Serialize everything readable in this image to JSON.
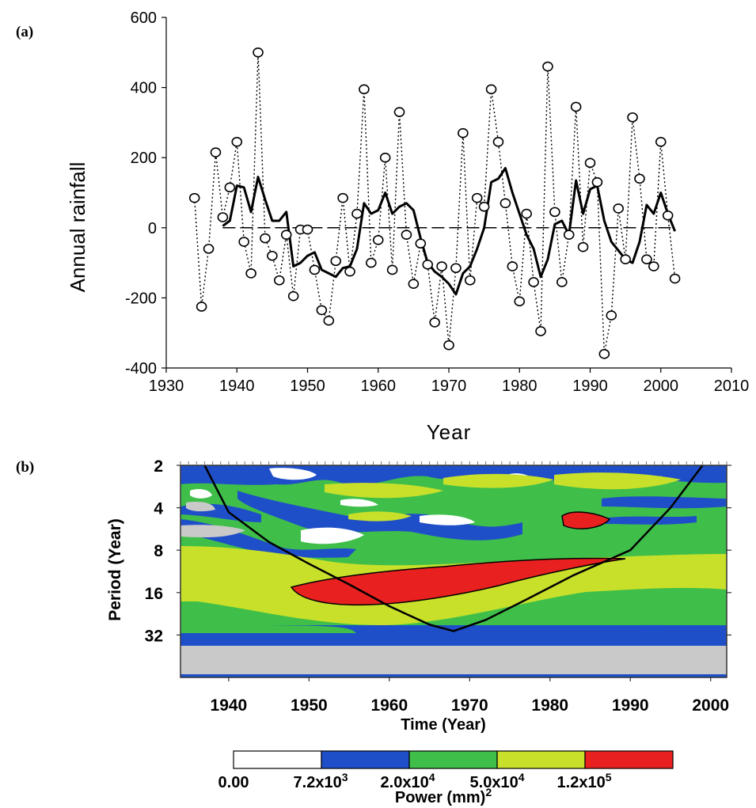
{
  "panels": {
    "a_label": "(a)",
    "b_label": "(b)"
  },
  "chart_data": [
    {
      "type": "line",
      "xlabel": "Year",
      "ylabel": "Annual rainfall",
      "xlim": [
        1930,
        2010
      ],
      "ylim": [
        -400,
        600
      ],
      "x_ticks": [
        1930,
        1940,
        1950,
        1960,
        1970,
        1980,
        1990,
        2000,
        2010
      ],
      "y_ticks": [
        -400,
        -200,
        0,
        200,
        400,
        600
      ],
      "grid": false,
      "zero_line": {
        "y": 0,
        "style": "dashed",
        "x_range": [
          1938,
          2002
        ]
      },
      "series": [
        {
          "style": "dotted-with-circle-markers",
          "x": [
            1934,
            1935,
            1936,
            1937,
            1938,
            1939,
            1940,
            1941,
            1942,
            1943,
            1944,
            1945,
            1946,
            1947,
            1948,
            1949,
            1950,
            1951,
            1952,
            1953,
            1954,
            1955,
            1956,
            1957,
            1958,
            1959,
            1960,
            1961,
            1962,
            1963,
            1964,
            1965,
            1966,
            1967,
            1968,
            1969,
            1970,
            1971,
            1972,
            1973,
            1974,
            1975,
            1976,
            1977,
            1978,
            1979,
            1980,
            1981,
            1982,
            1983,
            1984,
            1985,
            1986,
            1987,
            1988,
            1989,
            1990,
            1991,
            1992,
            1993,
            1994,
            1995,
            1996,
            1997,
            1998,
            1999,
            2000,
            2001,
            2002
          ],
          "values": [
            85,
            -225,
            -60,
            215,
            30,
            115,
            245,
            -40,
            -130,
            500,
            -30,
            -80,
            -150,
            -20,
            -195,
            -5,
            -5,
            -120,
            -235,
            -265,
            -95,
            85,
            -125,
            40,
            395,
            -100,
            -35,
            200,
            -120,
            330,
            -20,
            -160,
            -45,
            -105,
            -270,
            -110,
            -335,
            -115,
            270,
            -150,
            85,
            60,
            395,
            245,
            70,
            -110,
            -210,
            40,
            -155,
            -295,
            460,
            45,
            -155,
            -20,
            345,
            -55,
            185,
            130,
            -360,
            -250,
            55,
            -90,
            315,
            140,
            -90,
            -110,
            245,
            35,
            -145
          ]
        },
        {
          "style": "solid-smoothed",
          "x": [
            1938,
            1939,
            1940,
            1941,
            1942,
            1943,
            1944,
            1945,
            1946,
            1947,
            1948,
            1949,
            1950,
            1951,
            1952,
            1953,
            1954,
            1955,
            1956,
            1957,
            1958,
            1959,
            1960,
            1961,
            1962,
            1963,
            1964,
            1965,
            1966,
            1967,
            1968,
            1969,
            1970,
            1971,
            1972,
            1973,
            1974,
            1975,
            1976,
            1977,
            1978,
            1979,
            1980,
            1981,
            1982,
            1983,
            1984,
            1985,
            1986,
            1987,
            1988,
            1989,
            1990,
            1991,
            1992,
            1993,
            1994,
            1995,
            1996,
            1997,
            1998,
            1999,
            2000,
            2001,
            2002
          ],
          "values": [
            5,
            20,
            120,
            115,
            45,
            145,
            80,
            20,
            20,
            45,
            -110,
            -100,
            -80,
            -70,
            -120,
            -130,
            -140,
            -115,
            -110,
            -60,
            70,
            40,
            50,
            100,
            40,
            60,
            70,
            50,
            -30,
            -100,
            -125,
            -140,
            -160,
            -190,
            -130,
            -110,
            -60,
            0,
            130,
            140,
            170,
            100,
            40,
            -20,
            -60,
            -140,
            -90,
            10,
            20,
            -20,
            135,
            40,
            110,
            120,
            20,
            -40,
            -65,
            -90,
            -100,
            -40,
            65,
            40,
            100,
            40,
            -10
          ]
        }
      ]
    },
    {
      "type": "heatmap",
      "subtype": "wavelet-power-spectrum",
      "xlabel": "Time (Year)",
      "ylabel": "Period (Year)",
      "xlim": [
        1934,
        2002
      ],
      "ylim_log2_period": [
        2,
        64
      ],
      "x_ticks": [
        1940,
        1950,
        1960,
        1970,
        1980,
        1990,
        2000
      ],
      "y_ticks": [
        2,
        4,
        8,
        16,
        32
      ],
      "colorbar": {
        "title": "Power (mm)",
        "title_superscript": "2",
        "colors": [
          "#ffffff",
          "#1f4fc8",
          "#3fbf4a",
          "#c8e02a",
          "#e82020"
        ],
        "tick_labels": [
          {
            "base": "0.00",
            "exp": ""
          },
          {
            "base": "7.2x10",
            "exp": "3"
          },
          {
            "base": "2.0x10",
            "exp": "4"
          },
          {
            "base": "5.0x10",
            "exp": "4"
          },
          {
            "base": "1.2x10",
            "exp": "5"
          }
        ]
      },
      "cone_of_influence": {
        "x": [
          1937,
          1940,
          1945,
          1950,
          1955,
          1960,
          1965,
          1968,
          1972,
          1977,
          1983,
          1990,
          1995,
          1999
        ],
        "period": [
          2,
          4.3,
          7,
          10,
          14,
          20,
          27,
          30,
          25,
          18,
          12,
          8,
          4,
          2
        ]
      }
    }
  ]
}
